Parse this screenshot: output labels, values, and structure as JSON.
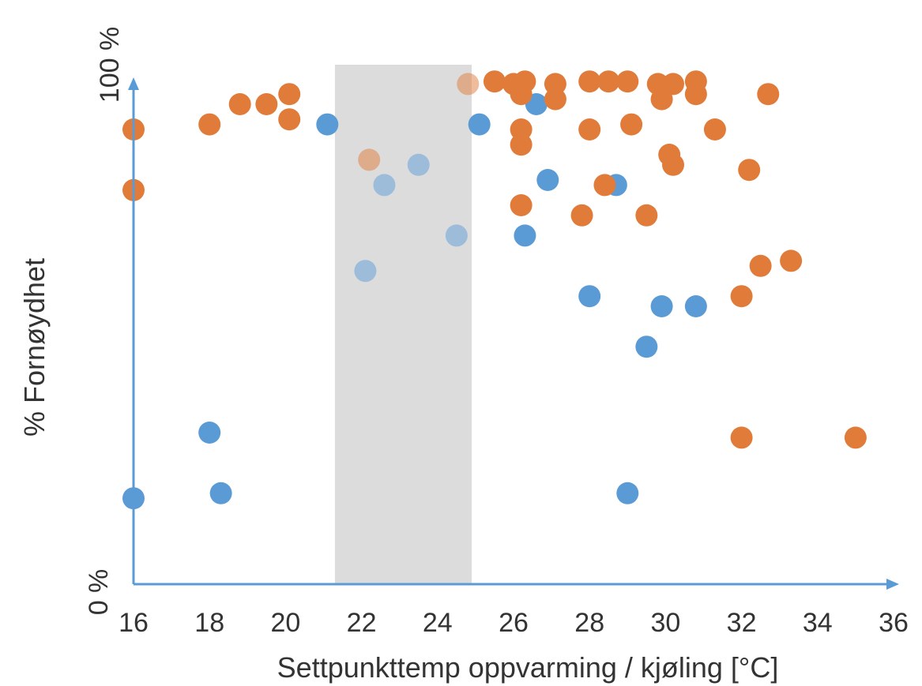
{
  "chart_data": {
    "type": "scatter",
    "title": "",
    "xlabel": "Settpunkttemp oppvarming / kjøling [°C]",
    "ylabel": "% Fornøydhet",
    "xlim": [
      16,
      36
    ],
    "ylim": [
      0,
      100
    ],
    "x_ticks": [
      "16",
      "18",
      "20",
      "22",
      "24",
      "26",
      "28",
      "30",
      "32",
      "34",
      "36"
    ],
    "y_tick_labels": {
      "min": "0 %",
      "max": "100 %"
    },
    "grid": false,
    "legend": "none",
    "shaded_band": {
      "x": [
        21.3,
        24.9
      ],
      "color": "#dcdcdc"
    },
    "axis_color": "#5b9bd5",
    "series": [
      {
        "color": "#5b9bd5",
        "points": [
          [
            16,
            17
          ],
          [
            18,
            30
          ],
          [
            18.3,
            18
          ],
          [
            21.1,
            91
          ],
          [
            22.1,
            62
          ],
          [
            22.6,
            79
          ],
          [
            23.5,
            83
          ],
          [
            24.5,
            69
          ],
          [
            25.1,
            91
          ],
          [
            26.3,
            69
          ],
          [
            26.6,
            95
          ],
          [
            26.9,
            80
          ],
          [
            28.0,
            57
          ],
          [
            28.7,
            79
          ],
          [
            29.0,
            18
          ],
          [
            29.5,
            47
          ],
          [
            29.9,
            55
          ],
          [
            30.8,
            55
          ]
        ]
      },
      {
        "color": "#e07b39",
        "points": [
          [
            16,
            90
          ],
          [
            16,
            78
          ],
          [
            18.0,
            91
          ],
          [
            18.8,
            95
          ],
          [
            19.5,
            95
          ],
          [
            20.1,
            97
          ],
          [
            20.1,
            92
          ],
          [
            22.2,
            84
          ],
          [
            24.8,
            99
          ],
          [
            25.5,
            99.5
          ],
          [
            26.0,
            99
          ],
          [
            26.2,
            97
          ],
          [
            26.3,
            99.5
          ],
          [
            26.2,
            90
          ],
          [
            26.2,
            87
          ],
          [
            26.2,
            75
          ],
          [
            27.1,
            99
          ],
          [
            27.1,
            96
          ],
          [
            27.8,
            73
          ],
          [
            28.0,
            99.5
          ],
          [
            28.0,
            90
          ],
          [
            28.5,
            99.5
          ],
          [
            29.0,
            99.5
          ],
          [
            28.4,
            79
          ],
          [
            29.1,
            91
          ],
          [
            29.5,
            73
          ],
          [
            29.8,
            99
          ],
          [
            29.9,
            96
          ],
          [
            30.2,
            99
          ],
          [
            30.1,
            85
          ],
          [
            30.2,
            83
          ],
          [
            30.8,
            99.5
          ],
          [
            30.8,
            97
          ],
          [
            31.3,
            90
          ],
          [
            32.0,
            57
          ],
          [
            32.0,
            29
          ],
          [
            32.2,
            82
          ],
          [
            32.5,
            63
          ],
          [
            32.7,
            97
          ],
          [
            33.3,
            64
          ],
          [
            35.0,
            29
          ]
        ]
      }
    ]
  }
}
